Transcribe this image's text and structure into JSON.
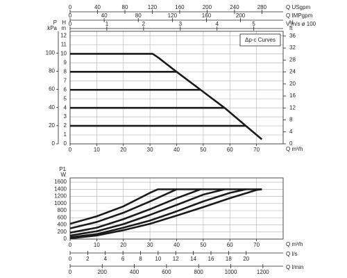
{
  "chart_data": [
    {
      "type": "line",
      "legend_text": "Δp-c Curves",
      "grid": true,
      "xlabel": "Q m³/h",
      "xlim": [
        0,
        80
      ],
      "xticks": [
        0,
        10,
        20,
        30,
        40,
        50,
        60,
        70
      ],
      "ylabel": [
        "H",
        "m"
      ],
      "ylim": [
        0,
        12.5
      ],
      "yticks": [
        0,
        1,
        2,
        3,
        4,
        5,
        6,
        7,
        8,
        9,
        10,
        11,
        12
      ],
      "left_axis": {
        "label": [
          "P",
          "kPa"
        ],
        "lim": [
          0,
          124
        ],
        "ticks": [
          0,
          20,
          40,
          60,
          80,
          100
        ]
      },
      "right_axis": {
        "label": [
          "H",
          "ft"
        ],
        "lim": [
          0,
          37.6
        ],
        "ticks": [
          0,
          4,
          8,
          12,
          16,
          20,
          24,
          28,
          32,
          36
        ]
      },
      "top_axes": [
        {
          "label": "Q USgpm",
          "lim": [
            0,
            311
          ],
          "ticks": [
            0,
            40,
            80,
            120,
            160,
            200,
            240,
            280
          ]
        },
        {
          "label": "Q IMPgpm",
          "lim": [
            0,
            250
          ],
          "ticks": [
            0,
            40,
            80,
            120,
            160,
            200
          ]
        },
        {
          "label": "V m/s ø 100",
          "lim": [
            0,
            5.8
          ],
          "ticks": [
            0,
            1,
            2,
            3,
            4,
            5
          ]
        }
      ],
      "series": [
        {
          "color": "#1a1a1a",
          "x": [
            0,
            31,
            33,
            40,
            49,
            58,
            66,
            72
          ],
          "values": [
            10,
            10,
            9.6,
            8,
            6,
            4,
            2,
            0.5
          ]
        },
        {
          "color": "#1a1a1a",
          "x": [
            0,
            40
          ],
          "values": [
            8,
            8
          ]
        },
        {
          "color": "#1a1a1a",
          "x": [
            0,
            49
          ],
          "values": [
            6,
            6
          ]
        },
        {
          "color": "#1a1a1a",
          "x": [
            0,
            58
          ],
          "values": [
            4,
            4
          ]
        },
        {
          "color": "#1a1a1a",
          "x": [
            0,
            66
          ],
          "values": [
            2,
            2
          ]
        }
      ]
    },
    {
      "type": "line",
      "grid": true,
      "xlabel": "Q m³/h",
      "xlim": [
        0,
        80
      ],
      "xticks": [
        0,
        10,
        20,
        30,
        40,
        50,
        60,
        70
      ],
      "ylabel": [
        "P1",
        "W"
      ],
      "ylim": [
        0,
        1720
      ],
      "yticks": [
        0,
        200,
        400,
        600,
        800,
        1000,
        1200,
        1400,
        1600
      ],
      "bottom_axes": [
        {
          "label": "Q l/s",
          "lim": [
            0,
            24.2
          ],
          "ticks": [
            0,
            2,
            4,
            6,
            8,
            10,
            12,
            14,
            16,
            18,
            20
          ]
        },
        {
          "label": "Q l/min",
          "lim": [
            0,
            1326
          ],
          "ticks": [
            0,
            200,
            400,
            600,
            800,
            1000,
            1200
          ]
        }
      ],
      "series": [
        {
          "color": "#1a1a1a",
          "x": [
            0,
            10,
            20,
            30,
            33,
            72
          ],
          "values": [
            430,
            640,
            920,
            1300,
            1400,
            1400
          ]
        },
        {
          "color": "#1a1a1a",
          "x": [
            0,
            10,
            20,
            30,
            40
          ],
          "values": [
            300,
            480,
            740,
            1060,
            1400
          ]
        },
        {
          "color": "#1a1a1a",
          "x": [
            0,
            10,
            20,
            30,
            40,
            49
          ],
          "values": [
            180,
            320,
            560,
            840,
            1150,
            1400
          ]
        },
        {
          "color": "#1a1a1a",
          "x": [
            0,
            10,
            20,
            30,
            40,
            50,
            58
          ],
          "values": [
            100,
            220,
            420,
            680,
            960,
            1250,
            1400
          ]
        },
        {
          "color": "#1a1a1a",
          "x": [
            0,
            10,
            20,
            30,
            40,
            50,
            60,
            66
          ],
          "values": [
            50,
            140,
            320,
            520,
            780,
            1060,
            1300,
            1400
          ]
        },
        {
          "color": "#1a1a1a",
          "x": [
            0,
            10,
            20,
            30,
            40,
            50,
            60,
            70,
            72
          ],
          "values": [
            20,
            100,
            250,
            430,
            660,
            900,
            1150,
            1380,
            1400
          ]
        }
      ]
    }
  ]
}
